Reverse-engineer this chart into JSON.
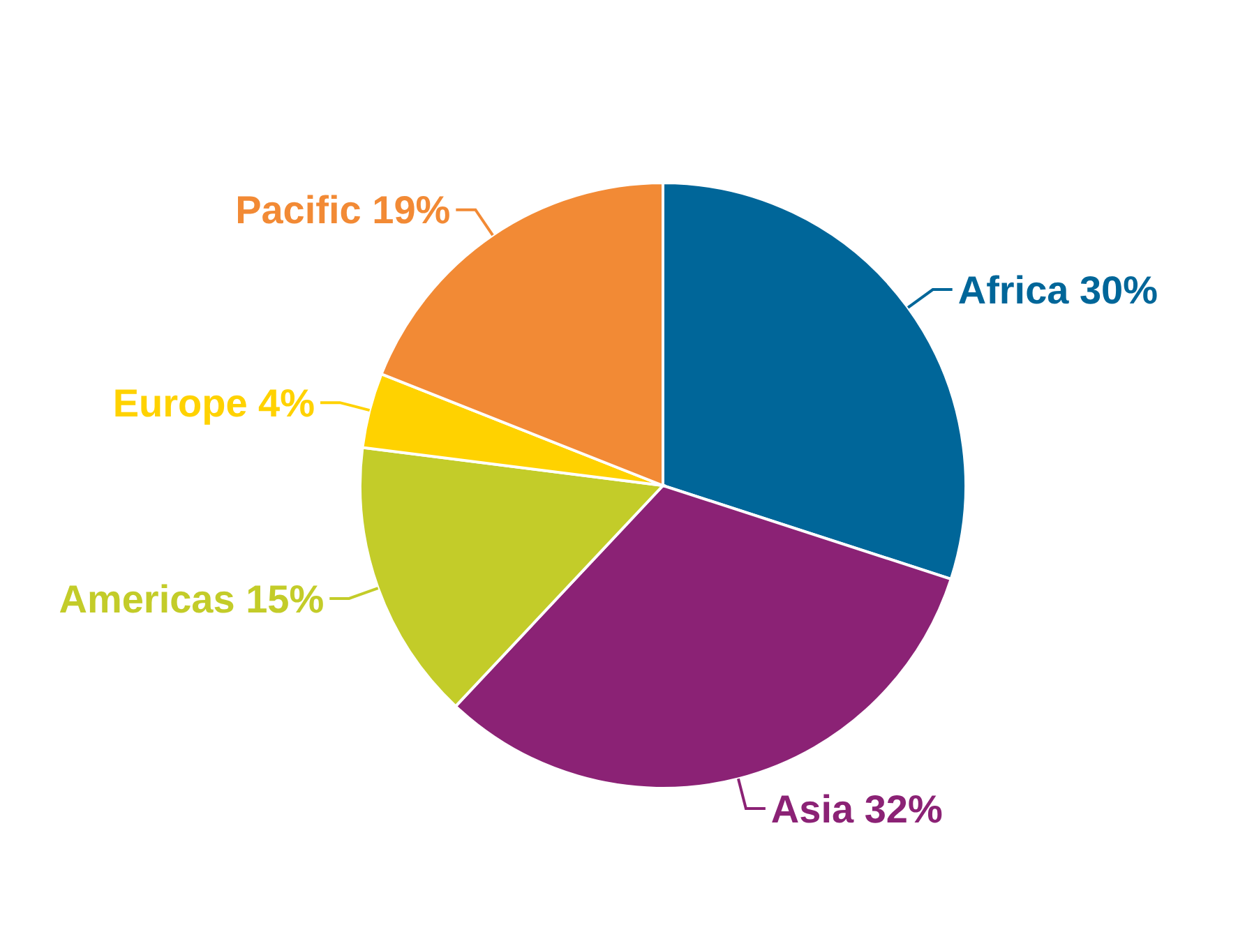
{
  "chart_data": {
    "type": "pie",
    "categories": [
      "Africa",
      "Asia",
      "Americas",
      "Europe",
      "Pacific"
    ],
    "values": [
      30,
      32,
      15,
      4,
      19
    ],
    "colors": [
      "#006699",
      "#8b2275",
      "#c3cc29",
      "#ffd200",
      "#f28a35"
    ],
    "value_labels": [
      "30%",
      "32%",
      "15%",
      "4%",
      "19%"
    ]
  }
}
